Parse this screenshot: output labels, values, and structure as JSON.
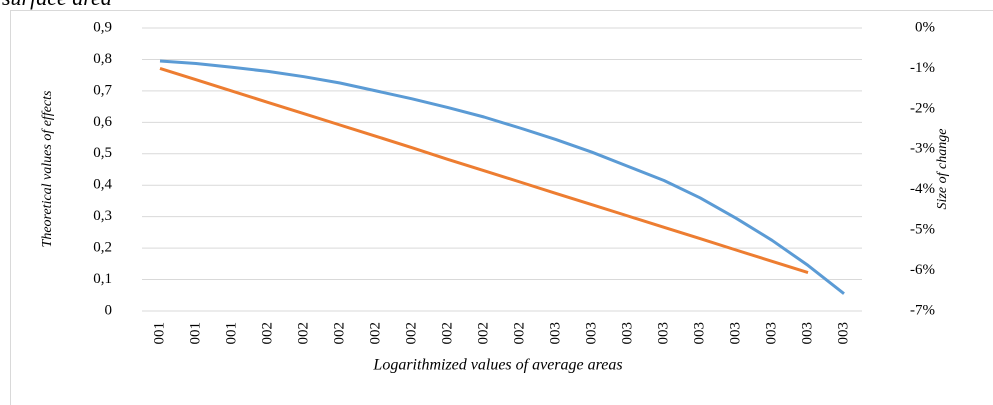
{
  "chart_data": {
    "type": "line",
    "title": "surface area",
    "y_label": "Theoretical values of effects",
    "y2_label": "Size of change",
    "x_label": "Logarithmized values of average areas",
    "categories": [
      "001",
      "001",
      "001",
      "002",
      "002",
      "002",
      "002",
      "002",
      "002",
      "002",
      "002",
      "003",
      "003",
      "003",
      "003",
      "003",
      "003",
      "003",
      "003",
      "003"
    ],
    "series": [
      {
        "name": "Theoretical values of effects",
        "color": "#5b9bd5",
        "values": [
          0.795,
          0.787,
          0.775,
          0.762,
          0.745,
          0.725,
          0.7,
          0.675,
          0.647,
          0.617,
          0.582,
          0.545,
          0.505,
          0.46,
          0.415,
          0.36,
          0.295,
          0.225,
          0.145,
          0.055
        ]
      },
      {
        "name": "Size of change",
        "color": "#ed7d31",
        "axis": "y2",
        "values": [
          -1.0,
          -1.28,
          -1.56,
          -1.84,
          -2.12,
          -2.4,
          -2.68,
          -2.96,
          -3.25,
          -3.53,
          -3.81,
          -4.09,
          -4.37,
          -4.65,
          -4.93,
          -5.21,
          -5.49,
          -5.77,
          -6.05,
          null
        ]
      }
    ],
    "ylim": [
      0,
      0.9
    ],
    "yticks": [
      0,
      {
        "value": 0.1,
        "label": "0,1"
      },
      {
        "value": 0.2,
        "label": "0,2"
      },
      {
        "value": 0.3,
        "label": "0,3"
      },
      {
        "value": 0.4,
        "label": "0,4"
      },
      {
        "value": 0.5,
        "label": "0,5"
      },
      {
        "value": 0.6,
        "label": "0,6"
      },
      {
        "value": 0.7,
        "label": "0,7"
      },
      {
        "value": 0.8,
        "label": "0,8"
      },
      {
        "value": 0.9,
        "label": "0,9"
      }
    ],
    "y2lim": [
      -7,
      0
    ],
    "y2ticks": [
      {
        "value": 0,
        "label": "0%"
      },
      {
        "value": -1,
        "label": "-1%"
      },
      {
        "value": -2,
        "label": "-2%"
      },
      {
        "value": -3,
        "label": "-3%"
      },
      {
        "value": -4,
        "label": "-4%"
      },
      {
        "value": -5,
        "label": "-5%"
      },
      {
        "value": -6,
        "label": "-6%"
      },
      {
        "value": -7,
        "label": "-7%"
      }
    ],
    "grid": true
  }
}
